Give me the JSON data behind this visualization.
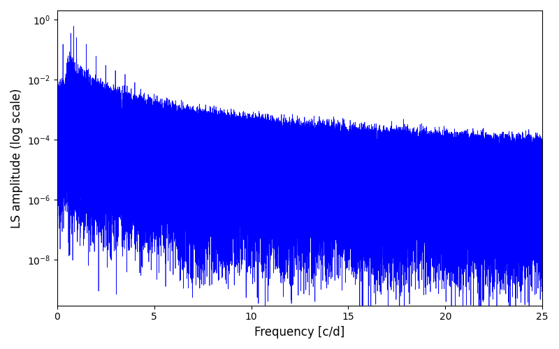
{
  "title": "",
  "xlabel": "Frequency [c/d]",
  "ylabel": "LS amplitude (log scale)",
  "xlim": [
    0,
    25
  ],
  "ylim_bottom": 3e-10,
  "ylim_top": 2.0,
  "line_color": "#0000ff",
  "line_width": 0.5,
  "freq_max": 25.0,
  "n_points": 50000,
  "seed": 12345,
  "background_color": "#ffffff",
  "figsize": [
    8.0,
    5.0
  ],
  "dpi": 100
}
